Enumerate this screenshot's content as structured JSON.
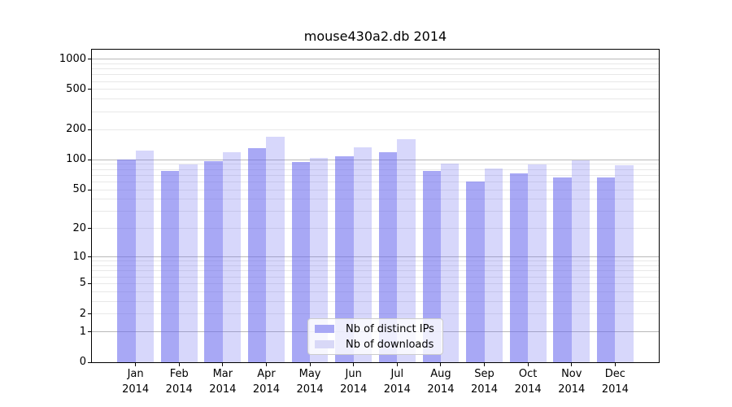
{
  "chart_data": {
    "type": "bar",
    "title": "mouse430a2.db 2014",
    "scale": "log1p",
    "categories": [
      "Jan",
      "Feb",
      "Mar",
      "Apr",
      "May",
      "Jun",
      "Jul",
      "Aug",
      "Sep",
      "Oct",
      "Nov",
      "Dec"
    ],
    "x_year_label": "2014",
    "series": [
      {
        "name": "Nb of distinct IPs",
        "color": "rgba(102,102,238,0.57)",
        "legend_color": "#a8a8f5",
        "values": [
          100,
          77,
          96,
          131,
          95,
          108,
          118,
          77,
          61,
          73,
          67,
          66
        ]
      },
      {
        "name": "Nb of downloads",
        "color": "rgba(102,102,238,0.26)",
        "legend_color": "#d8d8f7",
        "values": [
          123,
          89,
          119,
          170,
          104,
          134,
          161,
          91,
          81,
          90,
          98,
          88
        ]
      }
    ],
    "yticks": [
      1000,
      500,
      200,
      100,
      50,
      20,
      10,
      5,
      2,
      1,
      0
    ],
    "major_gridlines": [
      1,
      10,
      100,
      1000
    ],
    "minor_gridlines": [
      2,
      3,
      4,
      5,
      6,
      7,
      8,
      9,
      20,
      30,
      40,
      50,
      60,
      70,
      80,
      90,
      200,
      300,
      400,
      500,
      600,
      700,
      800,
      900
    ],
    "ylim": [
      0,
      1240
    ],
    "grid": true,
    "legend_position": "lower-center"
  }
}
